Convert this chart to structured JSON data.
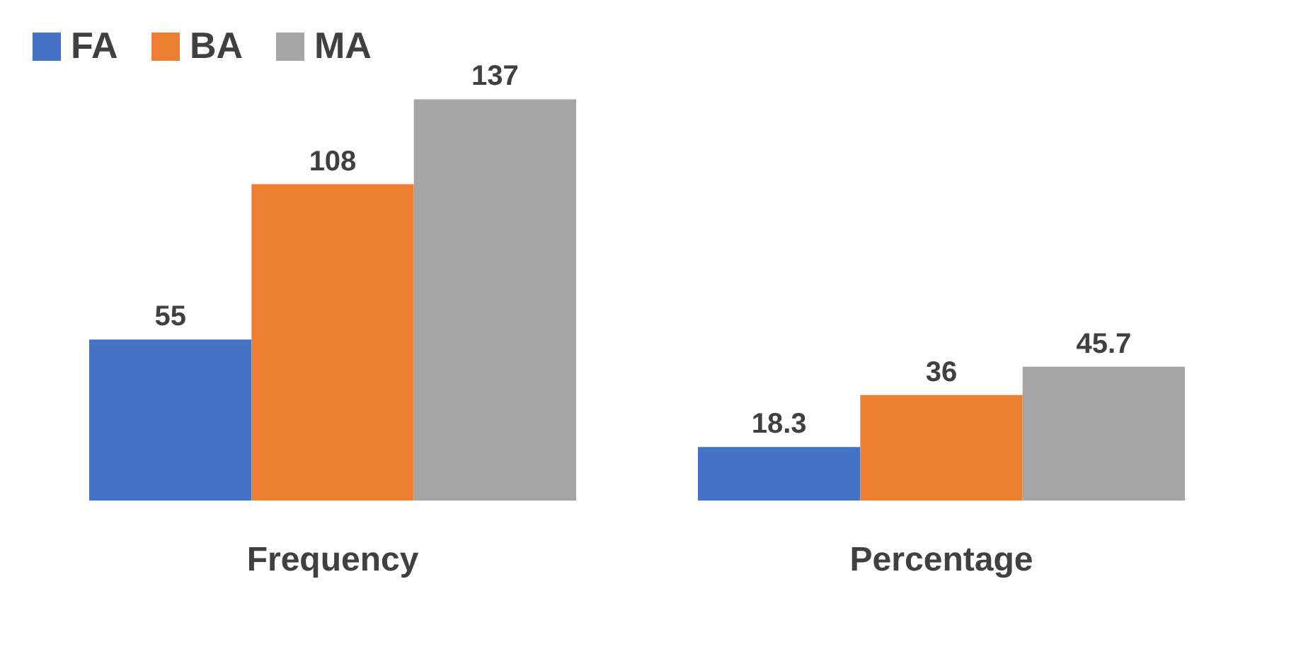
{
  "chart_data": {
    "type": "bar",
    "categories": [
      "Frequency",
      "Percentage"
    ],
    "series": [
      {
        "name": "FA",
        "color": "#4472c4",
        "values": [
          55,
          18.3
        ]
      },
      {
        "name": "BA",
        "color": "#ed7d31",
        "values": [
          108,
          36
        ]
      },
      {
        "name": "MA",
        "color": "#a5a5a5",
        "values": [
          137,
          45.7
        ]
      }
    ],
    "data_labels": true,
    "legend": "top",
    "grid": false
  }
}
